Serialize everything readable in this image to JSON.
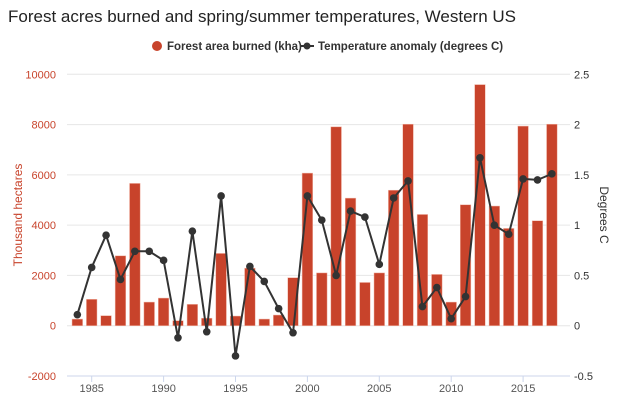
{
  "chart_data": {
    "type": "bar+line",
    "title": "Forest acres burned and spring/summer temperatures, Western US",
    "x": [
      1984,
      1985,
      1986,
      1987,
      1988,
      1989,
      1990,
      1991,
      1992,
      1993,
      1994,
      1995,
      1996,
      1997,
      1998,
      1999,
      2000,
      2001,
      2002,
      2003,
      2004,
      2005,
      2006,
      2007,
      2008,
      2009,
      2010,
      2011,
      2012,
      2013,
      2014,
      2015,
      2016,
      2017
    ],
    "series": [
      {
        "name": "Forest area burned (kha)",
        "type": "bar",
        "axis": "left",
        "color": "#c8432b",
        "values": [
          265,
          1050,
          400,
          2780,
          5660,
          940,
          1100,
          200,
          850,
          300,
          2875,
          385,
          2290,
          265,
          425,
          1910,
          6070,
          2100,
          7910,
          5075,
          1720,
          2100,
          5390,
          8015,
          4425,
          2040,
          940,
          4810,
          9590,
          4760,
          3870,
          7940,
          4175,
          8015
        ]
      },
      {
        "name": "Temperature anomaly (degrees C)",
        "type": "line",
        "axis": "right",
        "color": "#333333",
        "values": [
          0.11,
          0.58,
          0.9,
          0.46,
          0.74,
          0.74,
          0.65,
          -0.12,
          0.94,
          -0.06,
          1.29,
          -0.3,
          0.59,
          0.44,
          0.17,
          -0.07,
          1.29,
          1.05,
          0.5,
          1.14,
          1.08,
          0.61,
          1.27,
          1.44,
          0.19,
          0.38,
          0.07,
          0.29,
          1.67,
          1.0,
          0.91,
          1.46,
          1.45,
          1.51
        ]
      }
    ],
    "ylabel": "Thousand hectares",
    "ylim": [
      -2000,
      10000
    ],
    "yticks": [
      "-2000",
      "0",
      "2000",
      "4000",
      "6000",
      "8000",
      "10000"
    ],
    "y2label": "Degrees C",
    "y2lim": [
      -0.5,
      2.5
    ],
    "y2ticks": [
      "-0.5",
      "0",
      "0.5",
      "1",
      "1.5",
      "2",
      "2.5"
    ],
    "xticks": [
      "1985",
      "1990",
      "1995",
      "2000",
      "2005",
      "2010",
      "2015"
    ],
    "grid": true,
    "legend": "top-center",
    "colors": {
      "bar": "#c8432b",
      "line": "#333333",
      "left_axis": "#c8432b"
    }
  }
}
